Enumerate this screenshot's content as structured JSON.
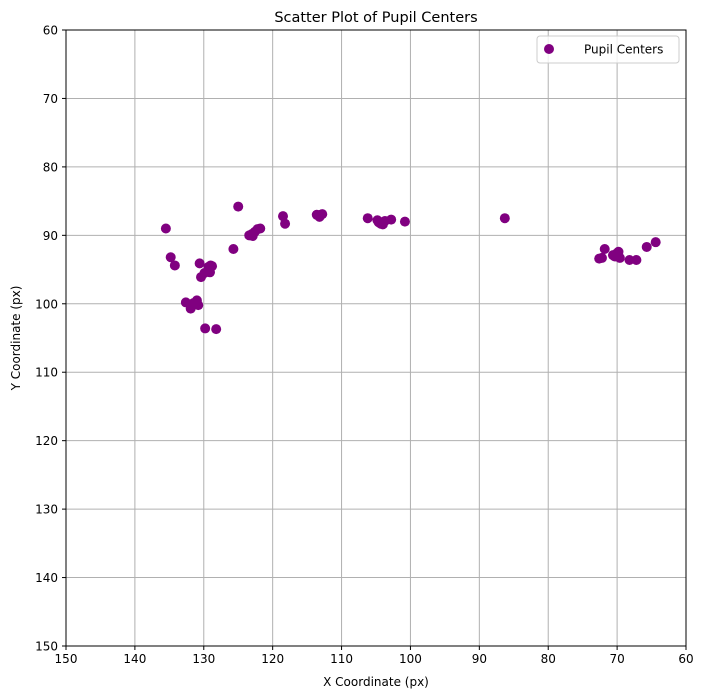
{
  "chart_data": {
    "type": "scatter",
    "title": "Scatter Plot of Pupil Centers",
    "xlabel": "X Coordinate (px)",
    "ylabel": "Y Coordinate (px)",
    "xlim": [
      150,
      60
    ],
    "ylim": [
      150,
      60
    ],
    "x_inverted": true,
    "y_inverted": true,
    "xticks": [
      150,
      140,
      130,
      120,
      110,
      100,
      90,
      80,
      70,
      60
    ],
    "yticks": [
      60,
      70,
      80,
      90,
      100,
      110,
      120,
      130,
      140,
      150
    ],
    "grid": true,
    "legend_position": "top-right",
    "color": "#800080",
    "series": [
      {
        "name": "Pupil Centers",
        "points": [
          [
            135.5,
            89.0
          ],
          [
            134.8,
            93.2
          ],
          [
            134.2,
            94.4
          ],
          [
            125.0,
            85.8
          ],
          [
            125.7,
            92.0
          ],
          [
            130.6,
            94.1
          ],
          [
            130.4,
            96.1
          ],
          [
            129.9,
            95.5
          ],
          [
            129.3,
            94.6
          ],
          [
            129.0,
            94.4
          ],
          [
            129.1,
            95.4
          ],
          [
            128.8,
            94.5
          ],
          [
            132.6,
            99.8
          ],
          [
            131.9,
            100.7
          ],
          [
            131.6,
            100.2
          ],
          [
            131.2,
            100.0
          ],
          [
            131.0,
            99.5
          ],
          [
            130.8,
            100.2
          ],
          [
            131.5,
            99.9
          ],
          [
            129.8,
            103.6
          ],
          [
            128.2,
            103.7
          ],
          [
            123.4,
            90.0
          ],
          [
            123.0,
            89.8
          ],
          [
            122.6,
            89.5
          ],
          [
            122.2,
            89.1
          ],
          [
            121.8,
            89.0
          ],
          [
            122.9,
            90.1
          ],
          [
            118.5,
            87.2
          ],
          [
            118.2,
            88.3
          ],
          [
            113.6,
            87.0
          ],
          [
            113.2,
            87.3
          ],
          [
            112.8,
            86.9
          ],
          [
            113.0,
            87.0
          ],
          [
            106.2,
            87.5
          ],
          [
            104.8,
            87.8
          ],
          [
            104.3,
            88.3
          ],
          [
            104.0,
            88.4
          ],
          [
            103.7,
            87.9
          ],
          [
            104.6,
            88.1
          ],
          [
            102.8,
            87.7
          ],
          [
            100.8,
            88.0
          ],
          [
            86.3,
            87.5
          ],
          [
            72.6,
            93.4
          ],
          [
            72.2,
            93.3
          ],
          [
            71.8,
            92.0
          ],
          [
            70.6,
            92.9
          ],
          [
            70.3,
            93.1
          ],
          [
            70.0,
            92.6
          ],
          [
            69.6,
            93.3
          ],
          [
            69.8,
            92.4
          ],
          [
            68.2,
            93.6
          ],
          [
            67.2,
            93.6
          ],
          [
            65.7,
            91.7
          ],
          [
            64.4,
            91.0
          ]
        ]
      }
    ]
  }
}
